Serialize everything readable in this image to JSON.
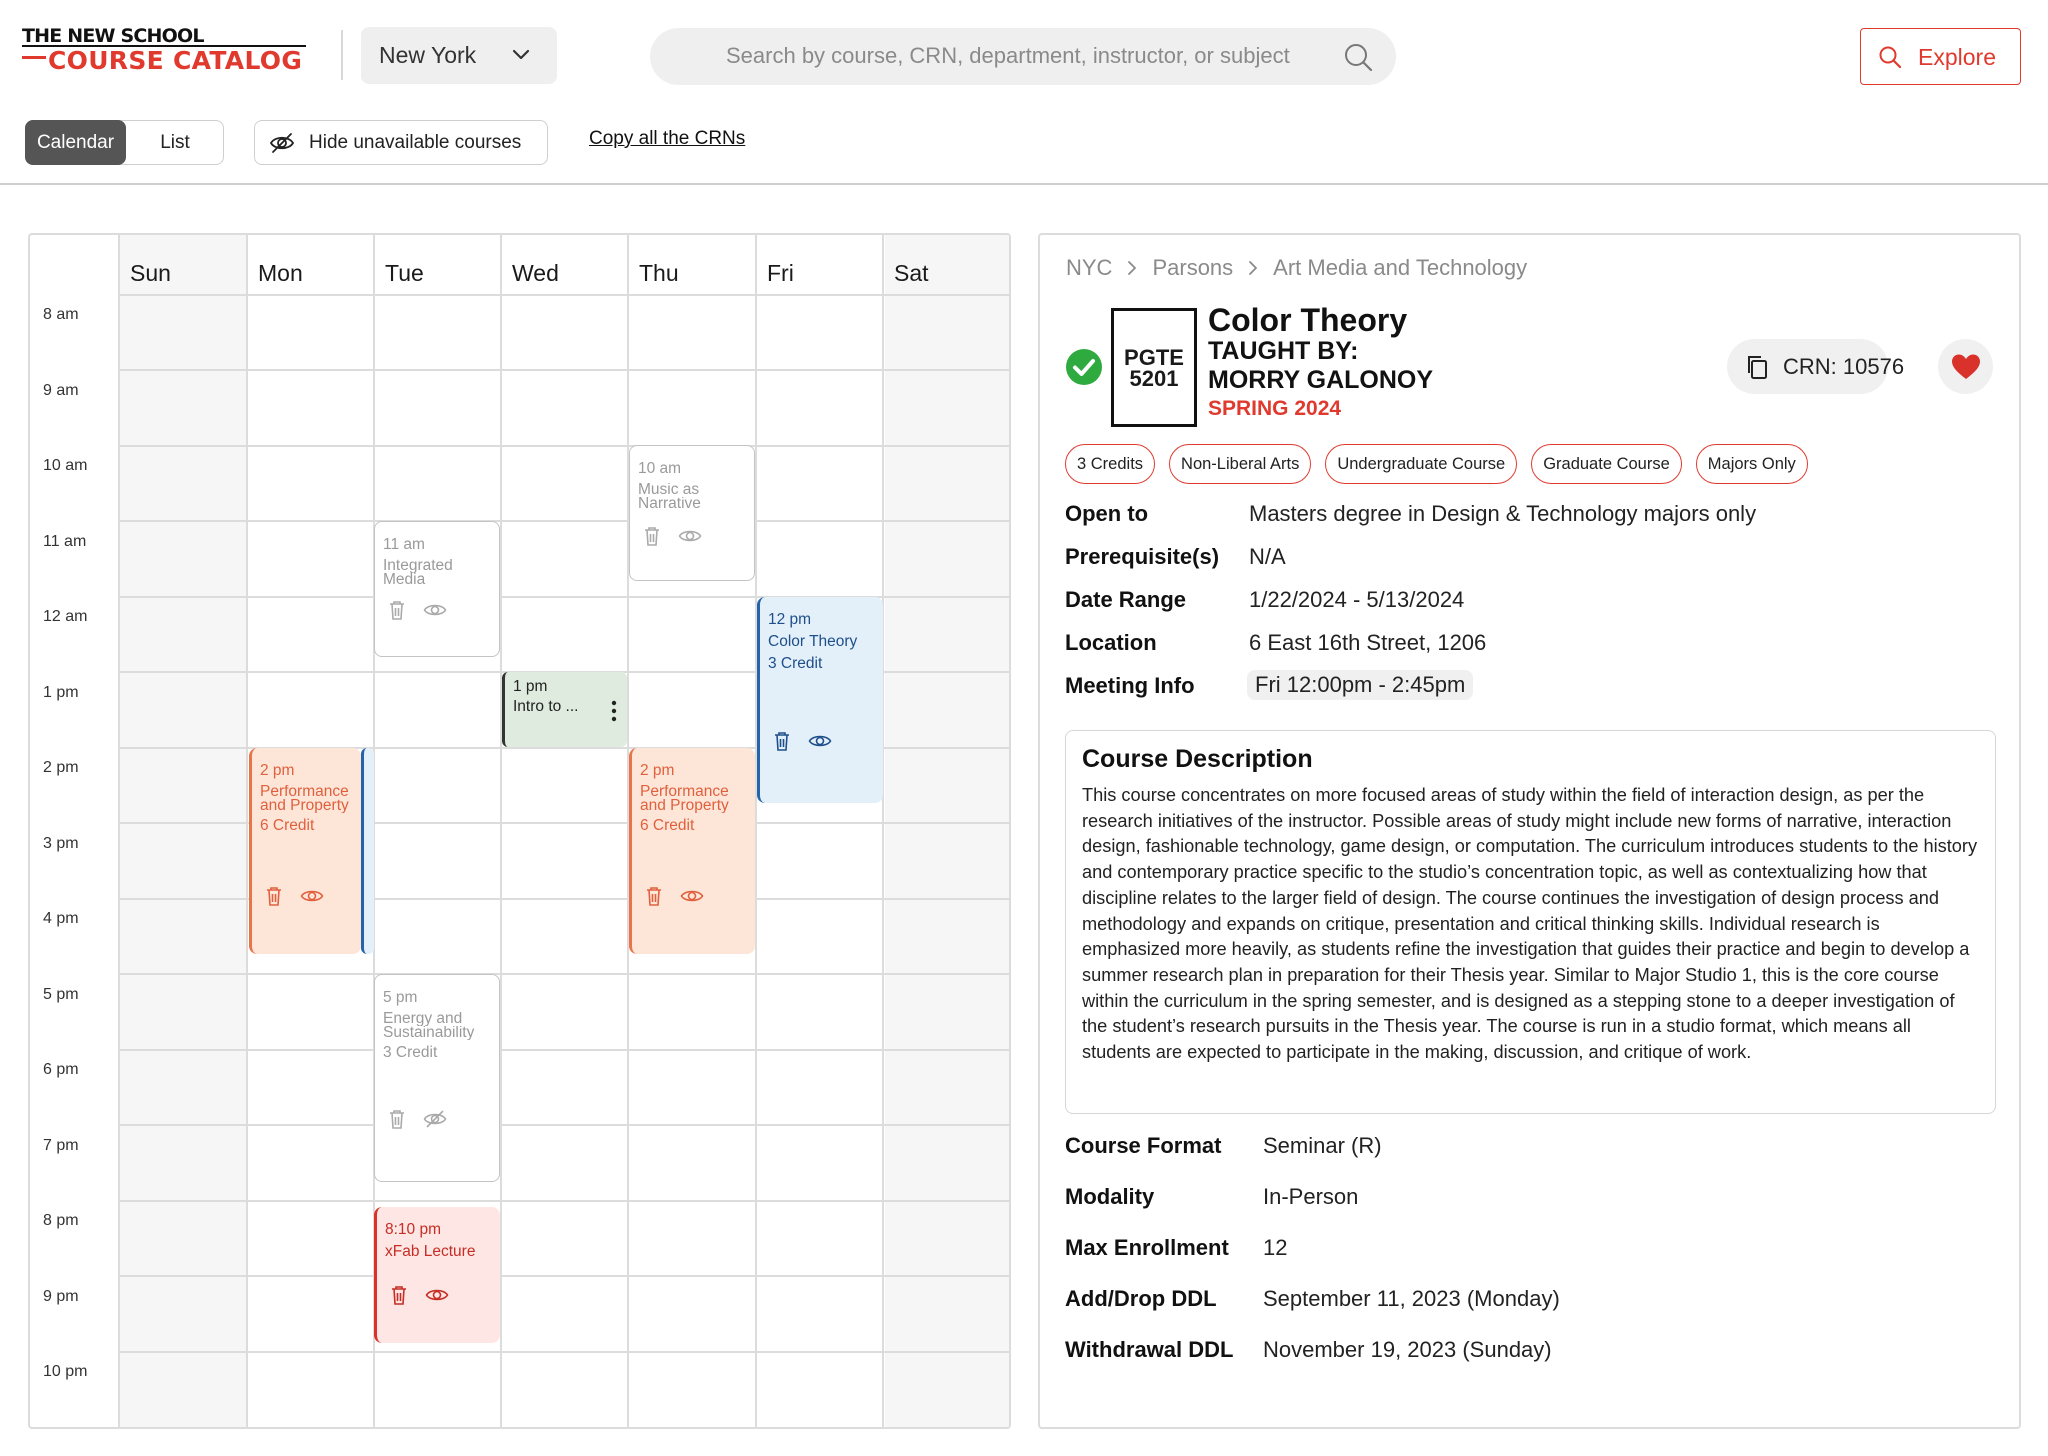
{
  "header": {
    "logo_top": "THE NEW SCHOOL",
    "logo_bottom": "COURSE CATALOG",
    "city": "New York",
    "search_placeholder": "Search by course, CRN, department, instructor, or subject",
    "explore_label": "Explore"
  },
  "toolbar": {
    "view_calendar": "Calendar",
    "view_list": "List",
    "hide_label": "Hide unavailable courses",
    "copy_label": "Copy all the CRNs"
  },
  "calendar": {
    "days": [
      "Sun",
      "Mon",
      "Tue",
      "Wed",
      "Thu",
      "Fri",
      "Sat"
    ],
    "times": [
      "8 am",
      "9 am",
      "10 am",
      "11 am",
      "12 am",
      "1 pm",
      "2 pm",
      "3 pm",
      "4 pm",
      "5 pm",
      "6 pm",
      "7 pm",
      "8 pm",
      "9 pm",
      "10 pm"
    ],
    "events": {
      "music": {
        "time": "10 am",
        "title1": "Music as",
        "title2": "Narrative"
      },
      "integrated": {
        "time": "11 am",
        "title1": "Integrated",
        "title2": "Media"
      },
      "color": {
        "time": "12 pm",
        "title": "Color Theory",
        "credit": "3 Credit"
      },
      "intro": {
        "time": "1 pm",
        "title": "Intro to ..."
      },
      "perf_mon": {
        "time": "2 pm",
        "title1": "Performance",
        "title2": "and Property",
        "credit": "6 Credit"
      },
      "perf_thu": {
        "time": "2 pm",
        "title1": "Performance",
        "title2": "and Property",
        "credit": "6 Credit"
      },
      "energy": {
        "time": "5 pm",
        "title1": "Energy and",
        "title2": "Sustainability",
        "credit": "3 Credit"
      },
      "xfab": {
        "time": "8:10 pm",
        "title": "xFab Lecture"
      }
    }
  },
  "detail": {
    "breadcrumb": [
      "NYC",
      "Parsons",
      "Art Media and Technology"
    ],
    "code_line1": "PGTE",
    "code_line2": "5201",
    "title": "Color Theory",
    "taught_by": "TAUGHT BY:",
    "instructor": "MORRY GALONOY",
    "term": "SPRING 2024",
    "crn": "CRN: 10576",
    "tags": [
      "3 Credits",
      "Non-Liberal Arts",
      "Undergraduate Course",
      "Graduate Course",
      "Majors Only"
    ],
    "open_to_label": "Open to",
    "open_to": "Masters degree in Design & Technology majors only",
    "prereq_label": "Prerequisite(s)",
    "prereq": "N/A",
    "date_range_label": "Date Range",
    "date_range": "1/22/2024 - 5/13/2024",
    "location_label": "Location",
    "location": "6 East 16th Street, 1206",
    "meeting_label": "Meeting Info",
    "meeting": "Fri 12:00pm - 2:45pm",
    "desc_title": "Course Description",
    "desc_body": "This course concentrates on more focused areas of study within the field of interaction design, as per the research initiatives of the instructor. Possible areas of study might include new forms of narrative, interaction design, fashionable technology, game design, or computation. The curriculum introduces students to the history and contemporary practice specific to the studio’s concentration topic, as well as contextualizing how that discipline relates to the larger field of design. The course continues the investigation of design process and methodology and expands on critique, presentation and critical thinking skills. Individual research is emphasized more heavily, as students refine the investigation that guides their practice and begin to develop a summer research plan in preparation for their Thesis year. Similar to Major Studio 1, this is the core course within the curriculum in the spring semester, and is designed as a stepping stone to a deeper investigation of the student’s research pursuits in the Thesis year. The course is run in a studio format, which means all students are expected to participate in the making, discussion, and critique of work.",
    "format_label": "Course Format",
    "format": "Seminar (R)",
    "modality_label": "Modality",
    "modality": "In-Person",
    "max_label": "Max Enrollment",
    "max": "12",
    "adddrop_label": "Add/Drop DDL",
    "adddrop": "September 11, 2023 (Monday)",
    "withdraw_label": "Withdrawal DDL",
    "withdraw": "November 19, 2023 (Sunday)"
  },
  "colors": {
    "brand_red": "#e03a2f",
    "event_orange": "#fde6d8",
    "event_blue": "#e3f0fa",
    "event_green": "#e0ebdf",
    "event_red": "#fde6e4",
    "success_green": "#2eaa3f"
  },
  "icons": [
    "chevron-down-icon",
    "search-icon",
    "eye-slash-icon",
    "trash-icon",
    "eye-icon",
    "more-vertical-icon",
    "check-circle-icon",
    "copy-icon",
    "heart-icon",
    "chevron-right-icon"
  ]
}
